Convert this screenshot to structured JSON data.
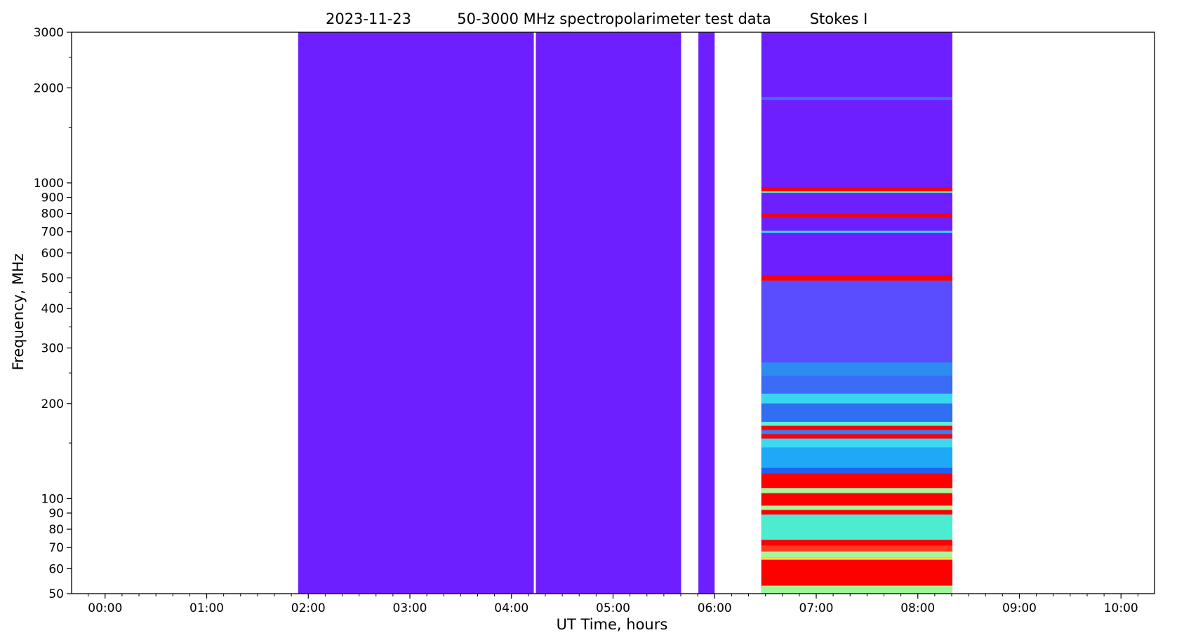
{
  "chart_data": {
    "type": "heatmap",
    "title_parts": [
      "2023-11-23",
      "50-3000 MHz spectropolarimeter test data",
      "Stokes I"
    ],
    "xlabel": "UT Time, hours",
    "ylabel": "Frequency, MHz",
    "y_scale": "log",
    "xlim": [
      -0.33,
      10.33
    ],
    "ylim": [
      50,
      3000
    ],
    "x_ticks": [
      {
        "value": 0,
        "label": "00:00"
      },
      {
        "value": 1,
        "label": "01:00"
      },
      {
        "value": 2,
        "label": "02:00"
      },
      {
        "value": 3,
        "label": "03:00"
      },
      {
        "value": 4,
        "label": "04:00"
      },
      {
        "value": 5,
        "label": "05:00"
      },
      {
        "value": 6,
        "label": "06:00"
      },
      {
        "value": 7,
        "label": "07:00"
      },
      {
        "value": 8,
        "label": "08:00"
      },
      {
        "value": 9,
        "label": "09:00"
      },
      {
        "value": 10,
        "label": "10:00"
      }
    ],
    "y_ticks": [
      {
        "value": 50,
        "label": "50"
      },
      {
        "value": 60,
        "label": "60"
      },
      {
        "value": 70,
        "label": "70"
      },
      {
        "value": 80,
        "label": "80"
      },
      {
        "value": 90,
        "label": "90"
      },
      {
        "value": 100,
        "label": "100"
      },
      {
        "value": 200,
        "label": "200"
      },
      {
        "value": 300,
        "label": "300"
      },
      {
        "value": 400,
        "label": "400"
      },
      {
        "value": 500,
        "label": "500"
      },
      {
        "value": 600,
        "label": "600"
      },
      {
        "value": 700,
        "label": "700"
      },
      {
        "value": 800,
        "label": "800"
      },
      {
        "value": 900,
        "label": "900"
      },
      {
        "value": 1000,
        "label": "1000"
      },
      {
        "value": 2000,
        "label": "2000"
      },
      {
        "value": 3000,
        "label": "3000"
      }
    ],
    "colormap": "rainbow",
    "colors": {
      "low": "#6e1fff",
      "mid": "#2d8cf0",
      "high": "#ff0000"
    },
    "data_blocks": [
      {
        "t_start": 1.9,
        "t_end": 4.22,
        "fill": "#6e1fff"
      },
      {
        "t_start": 4.24,
        "t_end": 5.67,
        "fill": "#6e1fff"
      },
      {
        "t_start": 5.84,
        "t_end": 6.0,
        "fill": "#6e1fff"
      },
      {
        "t_start": 6.46,
        "t_end": 8.34,
        "fill": "#6e1fff"
      }
    ],
    "bands": [
      {
        "t_start": 6.46,
        "t_end": 8.34,
        "f_low": 1830,
        "f_high": 1870,
        "color": "#4f6bff"
      },
      {
        "t_start": 6.46,
        "t_end": 8.34,
        "f_low": 940,
        "f_high": 970,
        "color": "#ff0000"
      },
      {
        "t_start": 6.46,
        "t_end": 8.34,
        "f_low": 930,
        "f_high": 940,
        "color": "#4cf5d2"
      },
      {
        "t_start": 6.46,
        "t_end": 8.34,
        "f_low": 780,
        "f_high": 800,
        "color": "#ff0000"
      },
      {
        "t_start": 6.46,
        "t_end": 8.34,
        "f_low": 695,
        "f_high": 705,
        "color": "#2ee6f5"
      },
      {
        "t_start": 6.46,
        "t_end": 8.34,
        "f_low": 490,
        "f_high": 510,
        "color": "#ff0000"
      },
      {
        "t_start": 6.46,
        "t_end": 8.34,
        "f_low": 485,
        "f_high": 490,
        "color": "#6ef5c8"
      },
      {
        "t_start": 6.46,
        "t_end": 8.34,
        "f_low": 270,
        "f_high": 490,
        "color": "#5a4cff"
      },
      {
        "t_start": 6.46,
        "t_end": 8.34,
        "f_low": 245,
        "f_high": 270,
        "color": "#2d8cf0"
      },
      {
        "t_start": 6.46,
        "t_end": 8.34,
        "f_low": 215,
        "f_high": 245,
        "color": "#3b6cf5"
      },
      {
        "t_start": 6.46,
        "t_end": 8.34,
        "f_low": 200,
        "f_high": 215,
        "color": "#3ad6f0"
      },
      {
        "t_start": 6.46,
        "t_end": 8.34,
        "f_low": 175,
        "f_high": 200,
        "color": "#2f70f2"
      },
      {
        "t_start": 6.46,
        "t_end": 8.34,
        "f_low": 170,
        "f_high": 175,
        "color": "#5cf0d8"
      },
      {
        "t_start": 6.46,
        "t_end": 8.34,
        "f_low": 165,
        "f_high": 170,
        "color": "#ff0000"
      },
      {
        "t_start": 6.46,
        "t_end": 8.34,
        "f_low": 160,
        "f_high": 165,
        "color": "#3a7cf2"
      },
      {
        "t_start": 6.46,
        "t_end": 8.34,
        "f_low": 155,
        "f_high": 160,
        "color": "#ff0000"
      },
      {
        "t_start": 6.46,
        "t_end": 8.34,
        "f_low": 145,
        "f_high": 155,
        "color": "#3cd8f2"
      },
      {
        "t_start": 6.46,
        "t_end": 8.34,
        "f_low": 125,
        "f_high": 145,
        "color": "#1fa8f5"
      },
      {
        "t_start": 6.46,
        "t_end": 8.34,
        "f_low": 120,
        "f_high": 125,
        "color": "#2060f5"
      },
      {
        "t_start": 6.46,
        "t_end": 8.34,
        "f_low": 108,
        "f_high": 120,
        "color": "#ff0000"
      },
      {
        "t_start": 6.46,
        "t_end": 8.34,
        "f_low": 104,
        "f_high": 108,
        "color": "#aaf59a"
      },
      {
        "t_start": 6.46,
        "t_end": 8.34,
        "f_low": 95,
        "f_high": 104,
        "color": "#ff0000"
      },
      {
        "t_start": 6.46,
        "t_end": 8.34,
        "f_low": 92,
        "f_high": 95,
        "color": "#aaf5a0"
      },
      {
        "t_start": 6.46,
        "t_end": 8.34,
        "f_low": 89,
        "f_high": 92,
        "color": "#ff0000"
      },
      {
        "t_start": 6.46,
        "t_end": 8.34,
        "f_low": 74,
        "f_high": 89,
        "color": "#4cecd0"
      },
      {
        "t_start": 6.46,
        "t_end": 8.34,
        "f_low": 71,
        "f_high": 74,
        "color": "#ff0000"
      },
      {
        "t_start": 6.46,
        "t_end": 8.34,
        "f_low": 68,
        "f_high": 71,
        "color": "#ff3a20"
      },
      {
        "t_start": 6.46,
        "t_end": 8.34,
        "f_low": 65,
        "f_high": 68,
        "color": "#aaf5a0"
      },
      {
        "t_start": 6.46,
        "t_end": 8.34,
        "f_low": 64,
        "f_high": 65,
        "color": "#ffe040"
      },
      {
        "t_start": 6.46,
        "t_end": 8.34,
        "f_low": 53,
        "f_high": 64,
        "color": "#ff0000"
      },
      {
        "t_start": 6.46,
        "t_end": 8.34,
        "f_low": 50,
        "f_high": 53,
        "color": "#9ef59a"
      }
    ],
    "grid": false
  }
}
